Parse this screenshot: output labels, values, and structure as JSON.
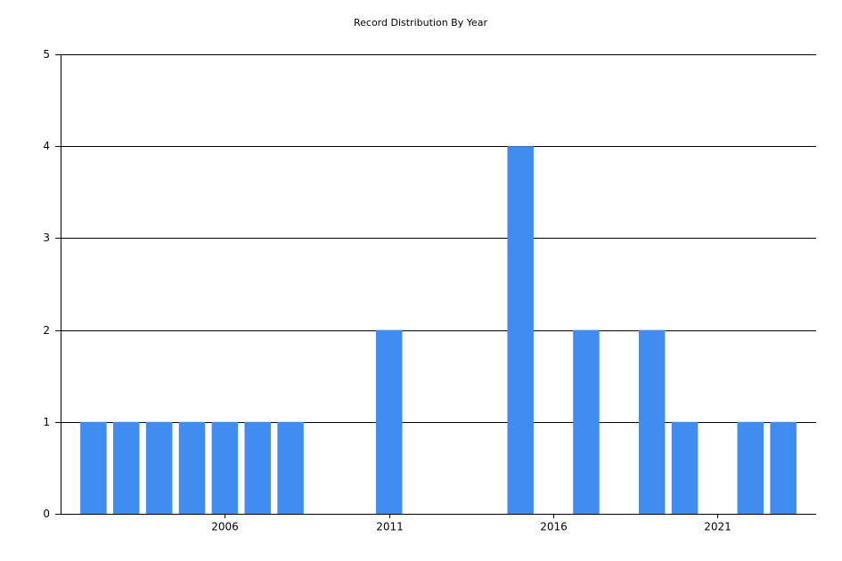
{
  "chart_data": {
    "type": "bar",
    "title": "Record Distribution By Year",
    "x": [
      2002,
      2003,
      2004,
      2005,
      2006,
      2007,
      2008,
      2011,
      2015,
      2017,
      2019,
      2020,
      2022,
      2023
    ],
    "values": [
      1,
      1,
      1,
      1,
      1,
      1,
      1,
      2,
      4,
      2,
      2,
      1,
      1,
      1
    ],
    "color": "#418cf0",
    "xlim": [
      2001,
      2024
    ],
    "xticks": [
      2006,
      2011,
      2016,
      2021
    ],
    "ylim": [
      0,
      5
    ],
    "yticks": [
      0,
      1,
      2,
      3,
      4,
      5
    ],
    "grid": true
  }
}
